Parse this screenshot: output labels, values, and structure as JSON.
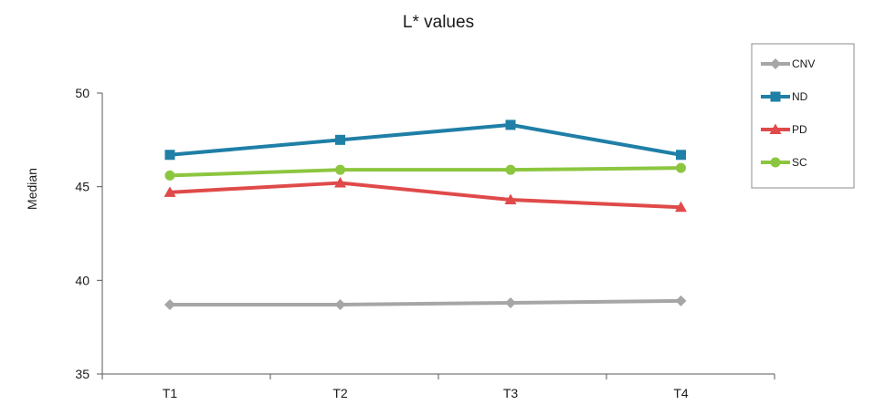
{
  "chart_data": {
    "type": "line",
    "title": "L* values",
    "xlabel": "",
    "ylabel": "Median",
    "categories": [
      "T1",
      "T2",
      "T3",
      "T4"
    ],
    "ylim": [
      35,
      50
    ],
    "yticks": [
      35,
      40,
      45,
      50
    ],
    "grid": false,
    "legend_position": "top-right",
    "series": [
      {
        "name": "CNV",
        "values": [
          38.7,
          38.7,
          38.8,
          38.9
        ],
        "color": "#a6a6a6",
        "marker": "diamond"
      },
      {
        "name": "ND",
        "values": [
          46.7,
          47.5,
          48.3,
          46.7
        ],
        "color": "#1f7fa6",
        "marker": "square"
      },
      {
        "name": "PD",
        "values": [
          44.7,
          45.2,
          44.3,
          43.9
        ],
        "color": "#e04a4a",
        "marker": "triangle"
      },
      {
        "name": "SC",
        "values": [
          45.6,
          45.9,
          45.9,
          46.0
        ],
        "color": "#8cc63f",
        "marker": "circle"
      }
    ]
  }
}
